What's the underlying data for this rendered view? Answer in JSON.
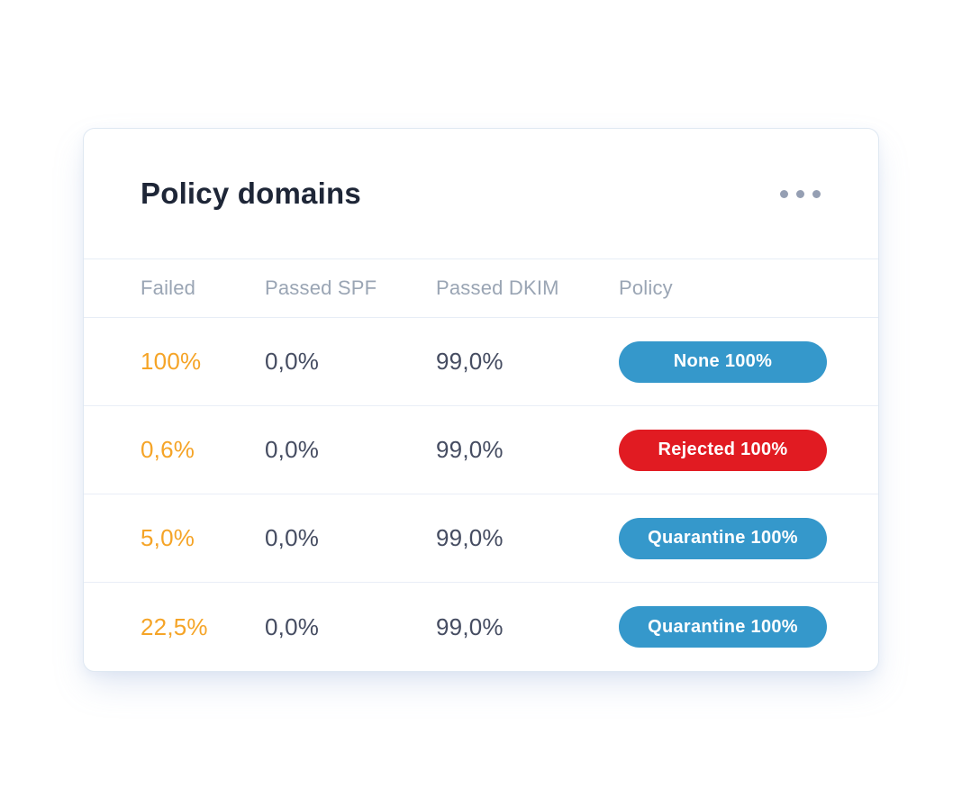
{
  "card": {
    "title": "Policy domains",
    "menu_icon": "ellipsis-horizontal-icon"
  },
  "table": {
    "columns": [
      "Failed",
      "Passed SPF",
      "Passed DKIM",
      "Policy"
    ],
    "rows": [
      {
        "failed": "100%",
        "passed_spf": "0,0%",
        "passed_dkim": "99,0%",
        "policy_label": "None 100%",
        "policy_color": "#3598cb"
      },
      {
        "failed": "0,6%",
        "passed_spf": "0,0%",
        "passed_dkim": "99,0%",
        "policy_label": "Rejected 100%",
        "policy_color": "#e11b22"
      },
      {
        "failed": "5,0%",
        "passed_spf": "0,0%",
        "passed_dkim": "99,0%",
        "policy_label": "Quarantine 100%",
        "policy_color": "#3598cb"
      },
      {
        "failed": "22,5%",
        "passed_spf": "0,0%",
        "passed_dkim": "99,0%",
        "policy_label": "Quarantine 100%",
        "policy_color": "#3598cb"
      }
    ]
  },
  "colors": {
    "failed_accent": "#f5a427",
    "badge_blue": "#3598cb",
    "badge_red": "#e11b22",
    "title_text": "#1e2637",
    "header_text": "#9aa5b4",
    "value_text": "#454c61",
    "divider": "#e7edf6",
    "card_border": "#dfe8f2"
  }
}
